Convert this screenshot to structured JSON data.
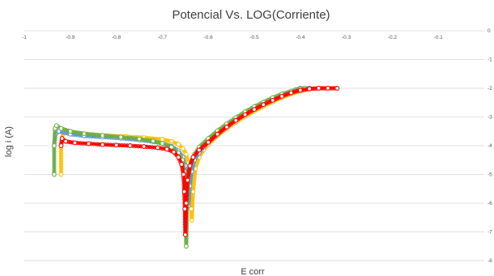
{
  "chart_data": {
    "type": "scatter",
    "title": "Potencial Vs. LOG(Corriente)",
    "xlabel": "E corr",
    "ylabel": "log i (A)",
    "xlim": [
      -1,
      0
    ],
    "ylim": [
      -8,
      0
    ],
    "x_ticks": [
      "-1",
      "-0.9",
      "-0.8",
      "-0.7",
      "-0.6",
      "-0.5",
      "-0.4",
      "-0.3",
      "-0.2",
      "-0.1",
      "0"
    ],
    "y_ticks": [
      "0",
      "-1",
      "-2",
      "-3",
      "-4",
      "-5",
      "-6",
      "-7",
      "-8"
    ],
    "grid": "horizontal",
    "legend": "none",
    "series": [
      {
        "color": "#ffc000",
        "points": [
          [
            -0.92,
            -5.0
          ],
          [
            -0.92,
            -4.0
          ],
          [
            -0.915,
            -3.45
          ],
          [
            -0.9,
            -3.52
          ],
          [
            -0.88,
            -3.58
          ],
          [
            -0.85,
            -3.62
          ],
          [
            -0.82,
            -3.65
          ],
          [
            -0.78,
            -3.68
          ],
          [
            -0.74,
            -3.72
          ],
          [
            -0.7,
            -3.78
          ],
          [
            -0.68,
            -3.85
          ],
          [
            -0.665,
            -3.95
          ],
          [
            -0.655,
            -4.1
          ],
          [
            -0.648,
            -4.3
          ],
          [
            -0.643,
            -4.6
          ],
          [
            -0.64,
            -5.0
          ],
          [
            -0.638,
            -5.6
          ],
          [
            -0.637,
            -6.2
          ],
          [
            -0.636,
            -6.6
          ],
          [
            -0.633,
            -5.6
          ],
          [
            -0.628,
            -4.8
          ],
          [
            -0.62,
            -4.4
          ],
          [
            -0.61,
            -4.15
          ],
          [
            -0.6,
            -3.95
          ],
          [
            -0.58,
            -3.65
          ],
          [
            -0.56,
            -3.4
          ],
          [
            -0.54,
            -3.18
          ],
          [
            -0.52,
            -2.98
          ],
          [
            -0.5,
            -2.8
          ],
          [
            -0.48,
            -2.63
          ],
          [
            -0.46,
            -2.47
          ],
          [
            -0.44,
            -2.32
          ],
          [
            -0.42,
            -2.2
          ],
          [
            -0.4,
            -2.1
          ],
          [
            -0.38,
            -2.03
          ],
          [
            -0.36,
            -2.0
          ],
          [
            -0.34,
            -2.0
          ],
          [
            -0.32,
            -2.0
          ]
        ]
      },
      {
        "color": "#5b9bd5",
        "points": [
          [
            -0.935,
            -4.0
          ],
          [
            -0.932,
            -3.6
          ],
          [
            -0.925,
            -3.5
          ],
          [
            -0.9,
            -3.6
          ],
          [
            -0.87,
            -3.66
          ],
          [
            -0.83,
            -3.7
          ],
          [
            -0.79,
            -3.74
          ],
          [
            -0.75,
            -3.8
          ],
          [
            -0.72,
            -3.86
          ],
          [
            -0.7,
            -3.92
          ],
          [
            -0.68,
            -4.02
          ],
          [
            -0.665,
            -4.18
          ],
          [
            -0.655,
            -4.4
          ],
          [
            -0.65,
            -4.7
          ],
          [
            -0.646,
            -5.1
          ],
          [
            -0.644,
            -5.6
          ],
          [
            -0.643,
            -6.1
          ],
          [
            -0.64,
            -5.4
          ],
          [
            -0.636,
            -4.9
          ],
          [
            -0.63,
            -4.5
          ],
          [
            -0.62,
            -4.25
          ],
          [
            -0.61,
            -4.05
          ],
          [
            -0.6,
            -3.85
          ],
          [
            -0.58,
            -3.55
          ],
          [
            -0.56,
            -3.3
          ],
          [
            -0.54,
            -3.08
          ],
          [
            -0.52,
            -2.88
          ],
          [
            -0.5,
            -2.7
          ],
          [
            -0.48,
            -2.53
          ],
          [
            -0.46,
            -2.38
          ],
          [
            -0.44,
            -2.24
          ],
          [
            -0.42,
            -2.12
          ],
          [
            -0.41,
            -2.05
          ],
          [
            -0.4,
            -2.0
          ],
          [
            -0.39,
            -2.0
          ],
          [
            -0.38,
            -2.0
          ]
        ]
      },
      {
        "color": "#70ad47",
        "points": [
          [
            -0.935,
            -5.0
          ],
          [
            -0.935,
            -4.0
          ],
          [
            -0.933,
            -3.4
          ],
          [
            -0.93,
            -3.3
          ],
          [
            -0.92,
            -3.4
          ],
          [
            -0.9,
            -3.5
          ],
          [
            -0.87,
            -3.58
          ],
          [
            -0.83,
            -3.64
          ],
          [
            -0.79,
            -3.7
          ],
          [
            -0.75,
            -3.76
          ],
          [
            -0.72,
            -3.84
          ],
          [
            -0.7,
            -3.92
          ],
          [
            -0.68,
            -4.05
          ],
          [
            -0.665,
            -4.25
          ],
          [
            -0.656,
            -4.5
          ],
          [
            -0.652,
            -4.9
          ],
          [
            -0.65,
            -5.5
          ],
          [
            -0.649,
            -6.2
          ],
          [
            -0.648,
            -7.5
          ],
          [
            -0.646,
            -6.0
          ],
          [
            -0.643,
            -5.1
          ],
          [
            -0.637,
            -4.6
          ],
          [
            -0.63,
            -4.3
          ],
          [
            -0.62,
            -4.05
          ],
          [
            -0.6,
            -3.75
          ],
          [
            -0.58,
            -3.48
          ],
          [
            -0.56,
            -3.24
          ],
          [
            -0.54,
            -3.02
          ],
          [
            -0.52,
            -2.82
          ],
          [
            -0.5,
            -2.64
          ],
          [
            -0.48,
            -2.48
          ],
          [
            -0.46,
            -2.33
          ],
          [
            -0.44,
            -2.2
          ],
          [
            -0.42,
            -2.1
          ],
          [
            -0.4,
            -2.02
          ],
          [
            -0.39,
            -2.0
          ]
        ]
      },
      {
        "color": "#ff0000",
        "points": [
          [
            -0.92,
            -4.0
          ],
          [
            -0.918,
            -3.75
          ],
          [
            -0.91,
            -3.85
          ],
          [
            -0.89,
            -3.9
          ],
          [
            -0.86,
            -3.93
          ],
          [
            -0.83,
            -3.96
          ],
          [
            -0.8,
            -3.98
          ],
          [
            -0.77,
            -4.0
          ],
          [
            -0.74,
            -4.03
          ],
          [
            -0.71,
            -4.07
          ],
          [
            -0.69,
            -4.12
          ],
          [
            -0.675,
            -4.22
          ],
          [
            -0.665,
            -4.4
          ],
          [
            -0.658,
            -4.65
          ],
          [
            -0.654,
            -5.0
          ],
          [
            -0.652,
            -5.6
          ],
          [
            -0.651,
            -6.2
          ],
          [
            -0.65,
            -7.1
          ],
          [
            -0.648,
            -6.0
          ],
          [
            -0.645,
            -5.2
          ],
          [
            -0.64,
            -4.7
          ],
          [
            -0.633,
            -4.4
          ],
          [
            -0.62,
            -4.15
          ],
          [
            -0.6,
            -3.88
          ],
          [
            -0.58,
            -3.6
          ],
          [
            -0.56,
            -3.35
          ],
          [
            -0.54,
            -3.12
          ],
          [
            -0.52,
            -2.92
          ],
          [
            -0.5,
            -2.74
          ],
          [
            -0.48,
            -2.57
          ],
          [
            -0.46,
            -2.42
          ],
          [
            -0.44,
            -2.28
          ],
          [
            -0.42,
            -2.16
          ],
          [
            -0.4,
            -2.07
          ],
          [
            -0.38,
            -2.02
          ],
          [
            -0.36,
            -2.0
          ],
          [
            -0.34,
            -2.0
          ],
          [
            -0.32,
            -2.0
          ]
        ]
      }
    ]
  }
}
